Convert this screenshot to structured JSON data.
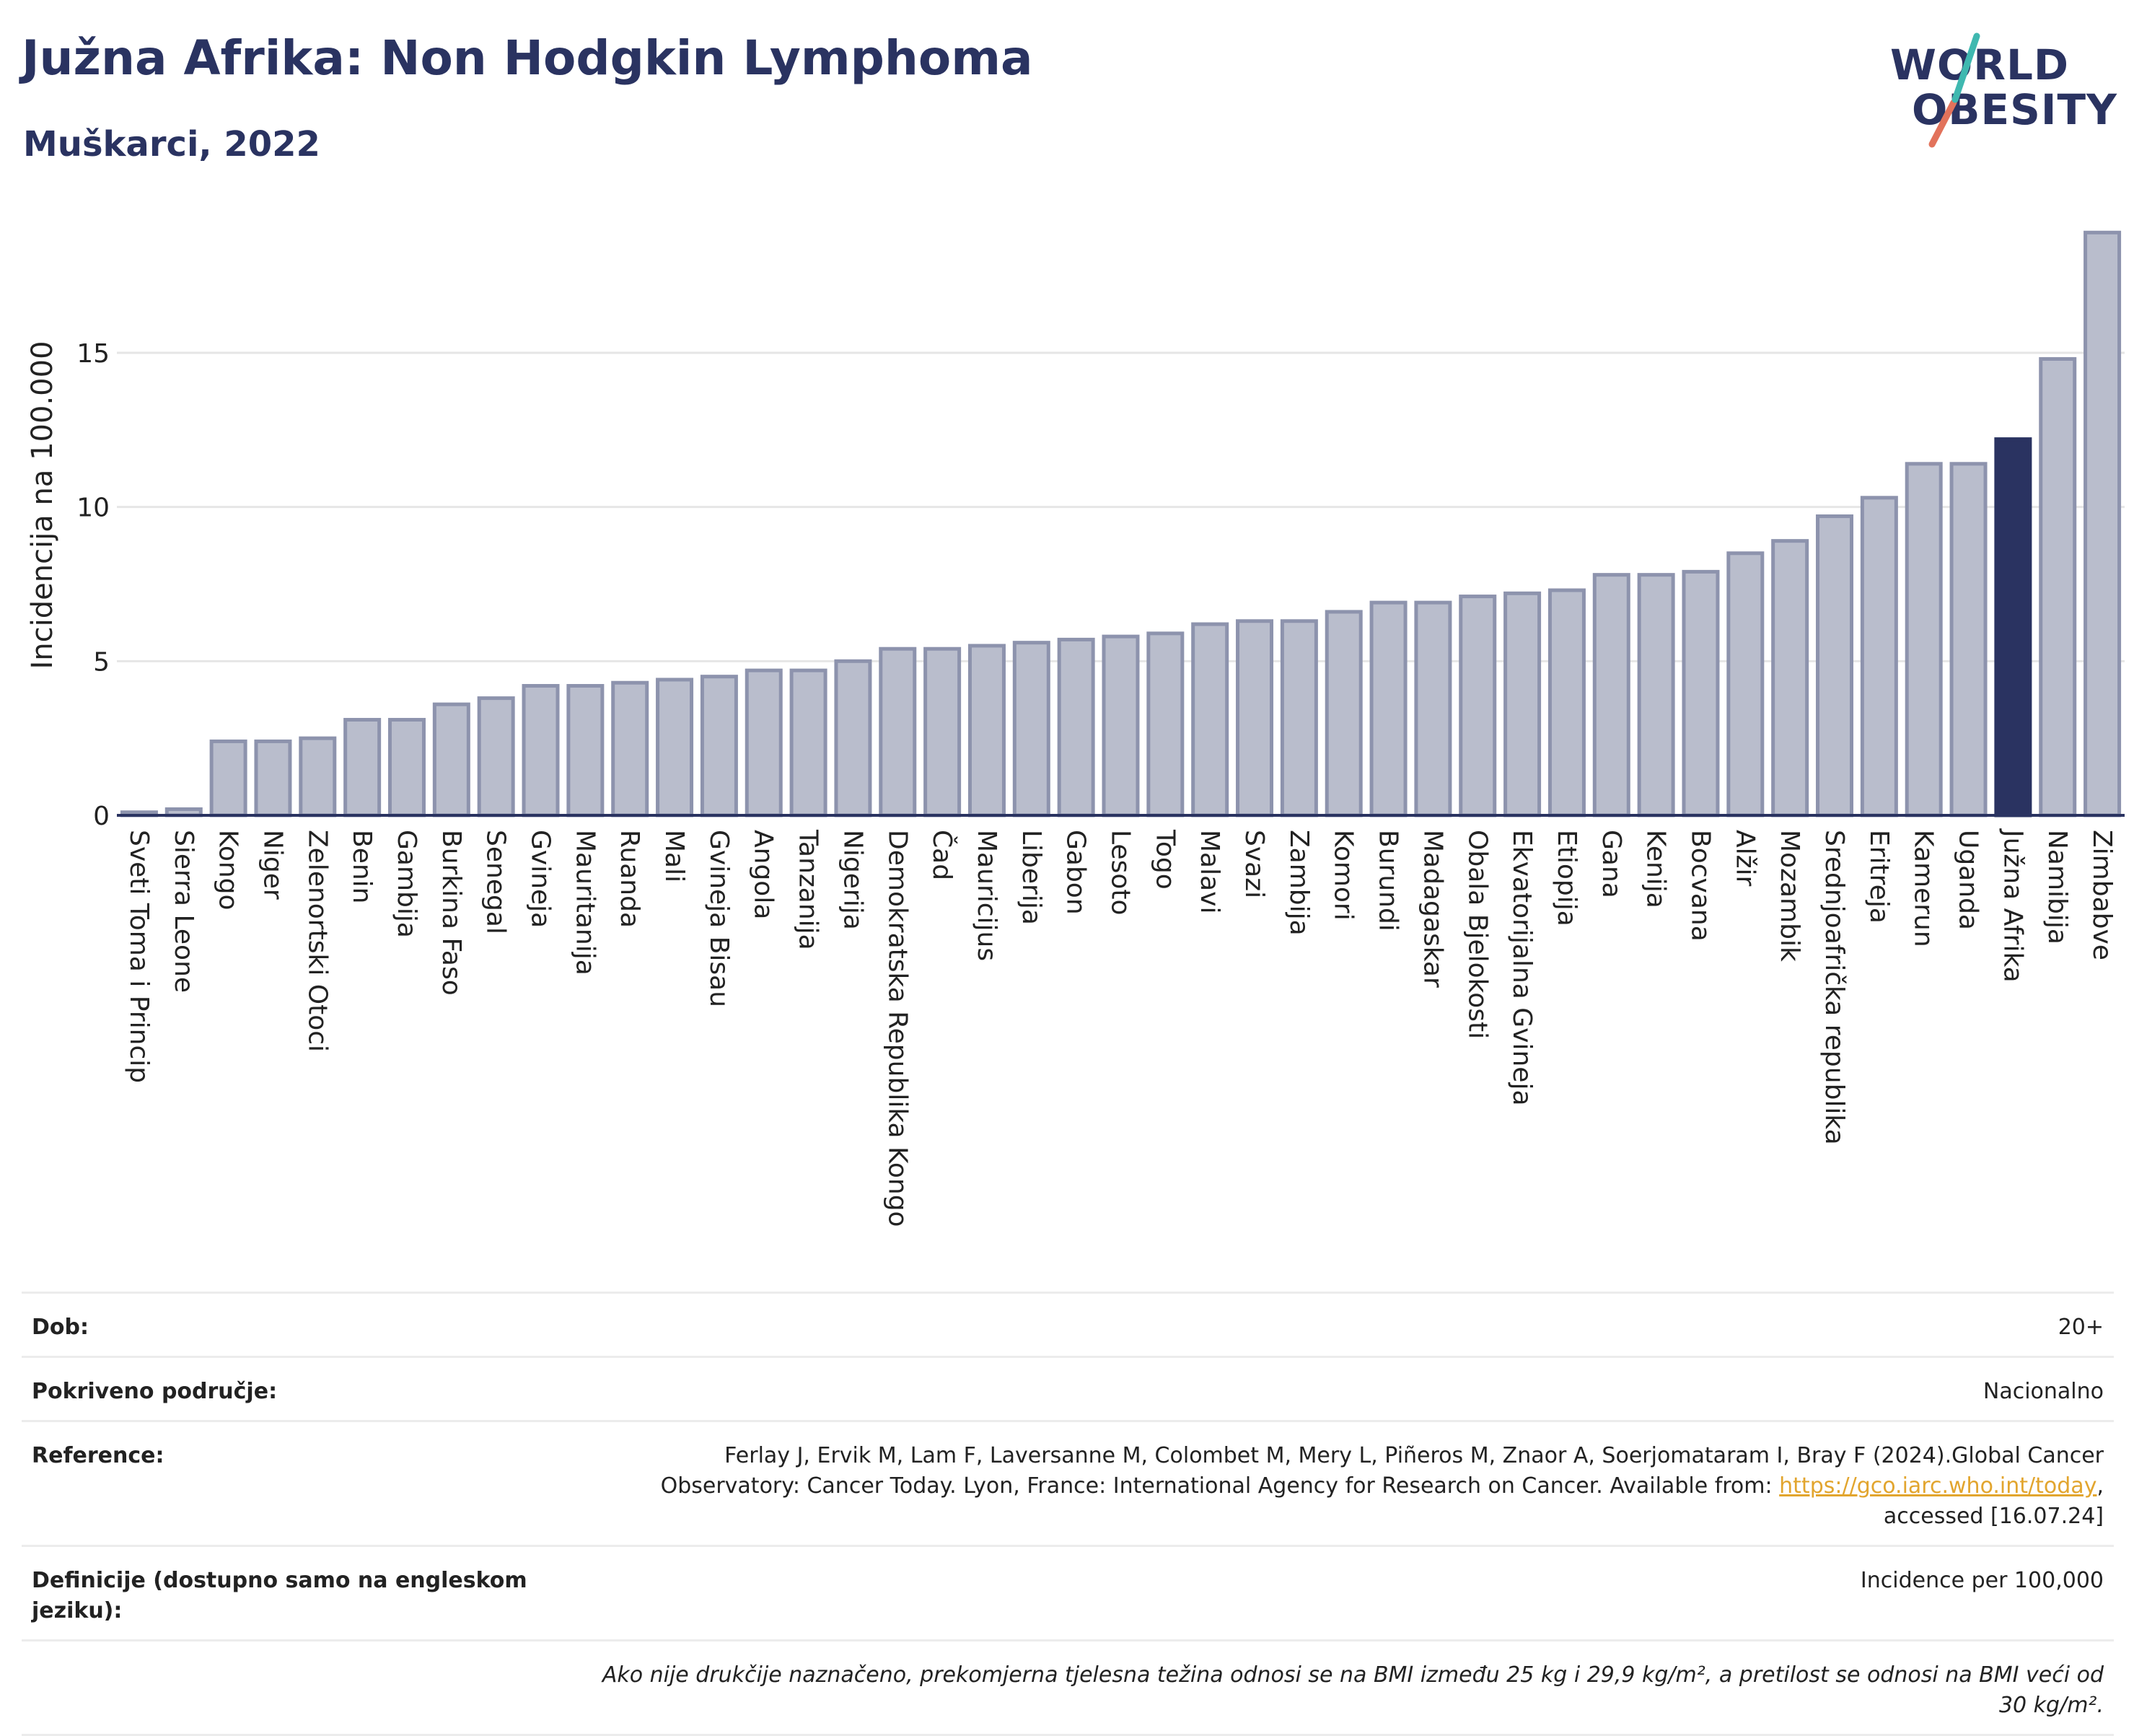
{
  "title": "Južna Afrika: Non Hodgkin Lymphoma",
  "subtitle": "Muškarci, 2022",
  "logo": {
    "line1": "WORLD",
    "line2": "OBESITY"
  },
  "colors": {
    "bar": "#b9bdcc",
    "bar_border": "#8d93ad",
    "highlight": "#2a3361",
    "title": "#2a3361",
    "link": "#e2a52e"
  },
  "chart_data": {
    "type": "bar",
    "ylabel": "Incidencija na 100.000",
    "xlabel": "",
    "ylim": [
      0,
      19
    ],
    "yticks": [
      0,
      5,
      10,
      15
    ],
    "grid": true,
    "highlight": "Južna Afrika",
    "categories": [
      "Sveti Toma i Princip",
      "Sierra Leone",
      "Kongo",
      "Niger",
      "Zelenortski Otoci",
      "Benin",
      "Gambija",
      "Burkina Faso",
      "Senegal",
      "Gvineja",
      "Mauritanija",
      "Ruanda",
      "Mali",
      "Gvineja Bisau",
      "Angola",
      "Tanzanija",
      "Nigerija",
      "Demokratska Republika Kongo",
      "Čad",
      "Mauricijus",
      "Liberija",
      "Gabon",
      "Lesoto",
      "Togo",
      "Malavi",
      "Svazi",
      "Zambija",
      "Komori",
      "Burundi",
      "Madagaskar",
      "Obala Bjelokosti",
      "Ekvatorijalna Gvineja",
      "Etiopija",
      "Gana",
      "Kenija",
      "Bocvana",
      "Alžir",
      "Mozambik",
      "Srednjoafrička republika",
      "Eritreja",
      "Kamerun",
      "Uganda",
      "Južna Afrika",
      "Namibija",
      "Zimbabve"
    ],
    "values": [
      0.1,
      0.2,
      2.4,
      2.4,
      2.5,
      3.1,
      3.1,
      3.6,
      3.8,
      4.2,
      4.2,
      4.3,
      4.4,
      4.5,
      4.7,
      4.7,
      5.0,
      5.4,
      5.4,
      5.5,
      5.6,
      5.7,
      5.8,
      5.9,
      6.2,
      6.3,
      6.3,
      6.6,
      6.9,
      6.9,
      7.1,
      7.2,
      7.3,
      7.8,
      7.8,
      7.9,
      8.5,
      8.9,
      9.7,
      10.3,
      11.4,
      11.4,
      12.2,
      14.8,
      18.9
    ]
  },
  "info": {
    "age_label": "Dob:",
    "age_value": "20+",
    "coverage_label": "Pokriveno područje:",
    "coverage_value": "Nacionalno",
    "ref_label": "Reference:",
    "ref_line1": "Ferlay J, Ervik M, Lam F, Laversanne M, Colombet M, Mery L, Piñeros M, Znaor A, Soerjomataram I, Bray F (2024).Global Cancer",
    "ref_line2": "Observatory: Cancer Today. Lyon, France: International Agency for Research on Cancer. Available from: ",
    "ref_link": "https://gco.iarc.who.int/today",
    "ref_line2_end": ",",
    "ref_line3": "accessed [16.07.24]",
    "def_label": "Definicije (dostupno samo na engleskom jeziku):",
    "def_value": "Incidence per 100,000",
    "note": "Ako nije drukčije naznačeno, prekomjerna tjelesna težina odnosi se na BMI između 25 kg i 29,9 kg/m², a pretilost se odnosi na BMI veći od 30 kg/m²."
  }
}
